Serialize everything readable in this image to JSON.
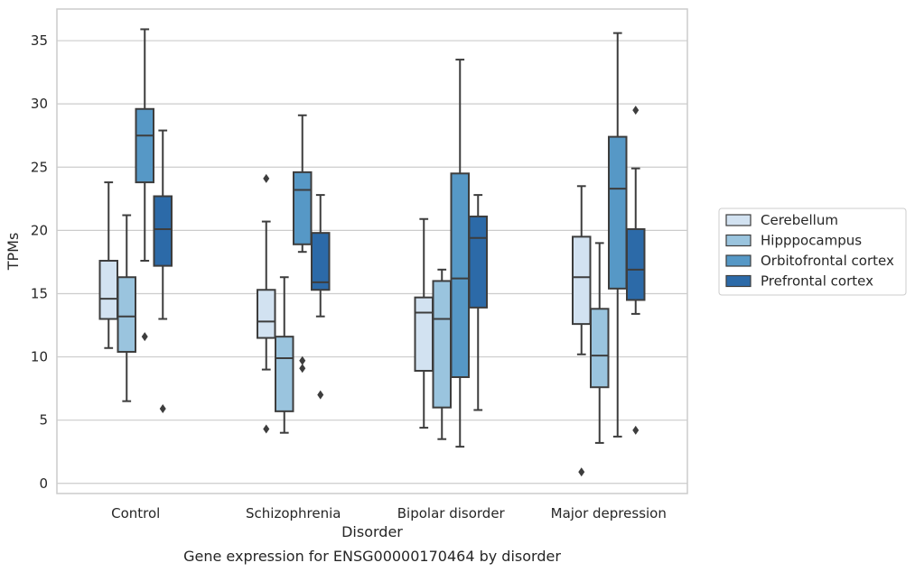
{
  "chart_data": {
    "type": "box",
    "title": "Gene expression for ENSG00000170464 by disorder",
    "xlabel": "Disorder",
    "ylabel": "TPMs",
    "ylim": [
      -0.8,
      37.5
    ],
    "yticks": [
      0,
      5,
      10,
      15,
      20,
      25,
      30,
      35
    ],
    "grid": "horizontal",
    "legend_position": "right",
    "categories": [
      "Control",
      "Schizophrenia",
      "Bipolar disorder",
      "Major depression"
    ],
    "series": [
      {
        "name": "Cerebellum",
        "color": "#d2e2f1",
        "boxes": [
          {
            "whisker_low": 10.7,
            "q1": 13.0,
            "median": 14.6,
            "q3": 17.6,
            "whisker_high": 23.8,
            "outliers": []
          },
          {
            "whisker_low": 9.0,
            "q1": 11.5,
            "median": 12.8,
            "q3": 15.3,
            "whisker_high": 20.7,
            "outliers": [
              24.1,
              4.3
            ]
          },
          {
            "whisker_low": 4.4,
            "q1": 8.9,
            "median": 13.5,
            "q3": 14.7,
            "whisker_high": 20.9,
            "outliers": []
          },
          {
            "whisker_low": 10.2,
            "q1": 12.6,
            "median": 16.3,
            "q3": 19.5,
            "whisker_high": 23.5,
            "outliers": [
              0.9
            ]
          }
        ]
      },
      {
        "name": "Hipppocampus",
        "color": "#9ac4de",
        "boxes": [
          {
            "whisker_low": 6.5,
            "q1": 10.4,
            "median": 13.2,
            "q3": 16.3,
            "whisker_high": 21.2,
            "outliers": []
          },
          {
            "whisker_low": 4.0,
            "q1": 5.7,
            "median": 9.9,
            "q3": 11.6,
            "whisker_high": 16.3,
            "outliers": []
          },
          {
            "whisker_low": 3.5,
            "q1": 6.0,
            "median": 13.0,
            "q3": 16.0,
            "whisker_high": 16.9,
            "outliers": []
          },
          {
            "whisker_low": 3.2,
            "q1": 7.6,
            "median": 10.1,
            "q3": 13.8,
            "whisker_high": 19.0,
            "outliers": []
          }
        ]
      },
      {
        "name": "Orbitofrontal cortex",
        "color": "#5698c6",
        "boxes": [
          {
            "whisker_low": 17.6,
            "q1": 23.8,
            "median": 27.5,
            "q3": 29.6,
            "whisker_high": 35.9,
            "outliers": [
              11.6
            ]
          },
          {
            "whisker_low": 18.3,
            "q1": 18.9,
            "median": 23.2,
            "q3": 24.6,
            "whisker_high": 29.1,
            "outliers": [
              9.7,
              9.1
            ]
          },
          {
            "whisker_low": 2.9,
            "q1": 8.4,
            "median": 16.2,
            "q3": 24.5,
            "whisker_high": 33.5,
            "outliers": []
          },
          {
            "whisker_low": 3.7,
            "q1": 15.4,
            "median": 23.3,
            "q3": 27.4,
            "whisker_high": 35.6,
            "outliers": []
          }
        ]
      },
      {
        "name": "Prefrontal cortex",
        "color": "#2c6aa8",
        "boxes": [
          {
            "whisker_low": 13.0,
            "q1": 17.2,
            "median": 20.1,
            "q3": 22.7,
            "whisker_high": 27.9,
            "outliers": [
              5.9
            ]
          },
          {
            "whisker_low": 13.2,
            "q1": 15.3,
            "median": 15.9,
            "q3": 19.8,
            "whisker_high": 22.8,
            "outliers": [
              7.0
            ]
          },
          {
            "whisker_low": 5.8,
            "q1": 13.9,
            "median": 19.4,
            "q3": 21.1,
            "whisker_high": 22.8,
            "outliers": []
          },
          {
            "whisker_low": 13.4,
            "q1": 14.5,
            "median": 16.9,
            "q3": 20.1,
            "whisker_high": 24.9,
            "outliers": [
              29.5,
              4.2
            ]
          }
        ]
      }
    ]
  }
}
